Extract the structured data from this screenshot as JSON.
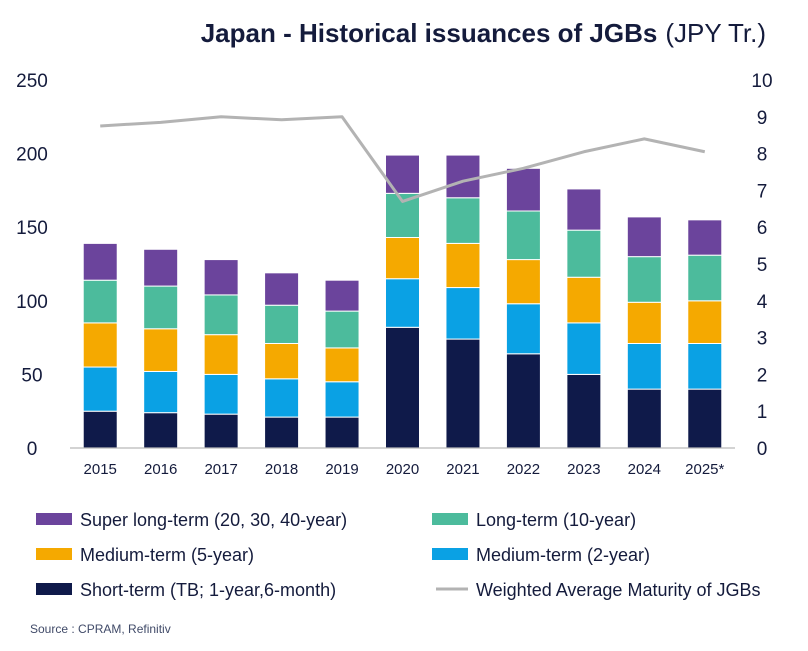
{
  "chart_data": {
    "type": "bar",
    "stacked": true,
    "title": "Japan - Historical issuances of JGBs",
    "title_unit": "(JPY Tr.)",
    "categories": [
      "2015",
      "2016",
      "2017",
      "2018",
      "2019",
      "2020",
      "2021",
      "2022",
      "2023",
      "2024",
      "2025*"
    ],
    "ylim": [
      0,
      250
    ],
    "y_ticks": [
      0,
      50,
      100,
      150,
      200,
      250
    ],
    "y2lim": [
      0,
      10
    ],
    "y2_ticks": [
      0,
      1,
      2,
      3,
      4,
      5,
      6,
      7,
      8,
      9,
      10
    ],
    "series": [
      {
        "name": "Short-term (TB; 1-year,6-month)",
        "color": "#0f1a4a",
        "values": [
          25,
          24,
          23,
          21,
          21,
          82,
          74,
          64,
          50,
          40,
          40
        ]
      },
      {
        "name": "Medium-term (2-year)",
        "color": "#0aa1e4",
        "values": [
          30,
          28,
          27,
          26,
          24,
          33,
          35,
          34,
          35,
          31,
          31
        ]
      },
      {
        "name": "Medium-term (5-year)",
        "color": "#f5a900",
        "values": [
          30,
          29,
          27,
          24,
          23,
          28,
          30,
          30,
          31,
          28,
          29
        ]
      },
      {
        "name": "Long-term (10-year)",
        "color": "#4cbb9c",
        "values": [
          29,
          29,
          27,
          26,
          25,
          30,
          31,
          33,
          32,
          31,
          31
        ]
      },
      {
        "name": "Super long-term (20, 30, 40-year)",
        "color": "#6b449c",
        "values": [
          25,
          25,
          24,
          22,
          21,
          26,
          29,
          29,
          28,
          27,
          24
        ]
      }
    ],
    "line_series": {
      "name": "Weighted Average Maturity of JGBs",
      "color": "#b3b3b3",
      "axis": "right",
      "values": [
        8.75,
        8.85,
        9.0,
        8.92,
        9.0,
        6.7,
        7.25,
        7.6,
        8.05,
        8.4,
        8.05
      ]
    },
    "legend": [
      {
        "name": "Super long-term (20, 30, 40-year)",
        "color": "#6b449c",
        "kind": "box"
      },
      {
        "name": "Long-term (10-year)",
        "color": "#4cbb9c",
        "kind": "box"
      },
      {
        "name": "Medium-term (5-year)",
        "color": "#f5a900",
        "kind": "box"
      },
      {
        "name": "Medium-term (2-year)",
        "color": "#0aa1e4",
        "kind": "box"
      },
      {
        "name": "Short-term (TB; 1-year,6-month)",
        "color": "#0f1a4a",
        "kind": "box"
      },
      {
        "name": "Weighted Average Maturity of JGBs",
        "color": "#b3b3b3",
        "kind": "line"
      }
    ],
    "legend_position": "bottom",
    "grid": false
  },
  "source": "Source : CPRAM, Refinitiv"
}
